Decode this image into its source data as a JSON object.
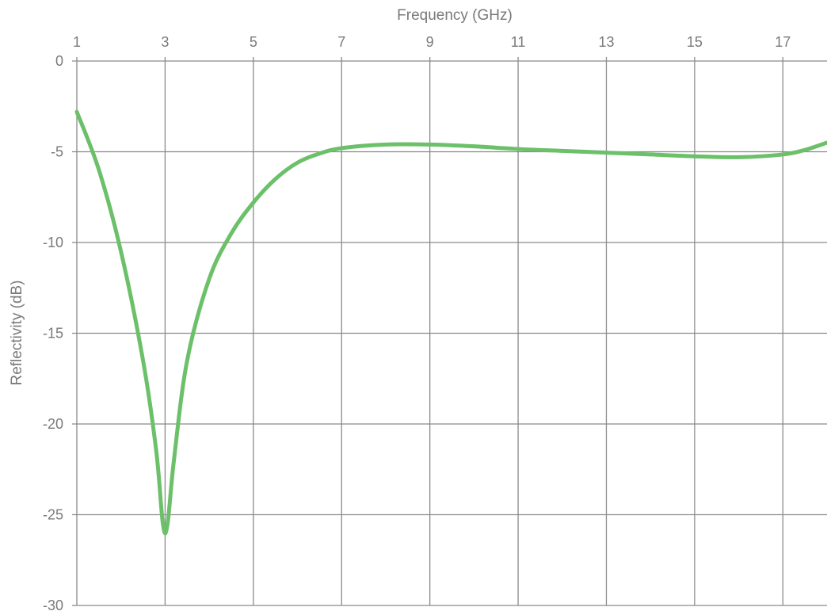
{
  "chart_data": {
    "type": "line",
    "title": "",
    "xlabel": "Frequency (GHz)",
    "ylabel": "Reflectivity (dB)",
    "x_axis_position": "top",
    "xlim": [
      1,
      18
    ],
    "ylim": [
      -30,
      0
    ],
    "x_ticks": [
      1,
      3,
      5,
      7,
      9,
      11,
      13,
      15,
      17
    ],
    "y_ticks": [
      0,
      -5,
      -10,
      -15,
      -20,
      -25,
      -30
    ],
    "grid": true,
    "legend": "none",
    "series": [
      {
        "color": "#6cc06a",
        "x": [
          1.0,
          1.5,
          2.0,
          2.5,
          2.8,
          2.95,
          3.05,
          3.2,
          3.5,
          4.0,
          4.5,
          5.0,
          5.5,
          6.0,
          6.5,
          7.0,
          8.0,
          9.0,
          10.0,
          11.0,
          12.0,
          13.0,
          14.0,
          15.0,
          16.0,
          17.0,
          17.5,
          18.0
        ],
        "y": [
          -2.8,
          -6.0,
          -10.5,
          -16.5,
          -21.5,
          -25.5,
          -25.6,
          -22.0,
          -16.5,
          -12.0,
          -9.5,
          -7.8,
          -6.5,
          -5.6,
          -5.1,
          -4.8,
          -4.6,
          -4.6,
          -4.7,
          -4.85,
          -4.95,
          -5.05,
          -5.15,
          -5.25,
          -5.3,
          -5.15,
          -4.9,
          -4.5
        ]
      }
    ]
  }
}
